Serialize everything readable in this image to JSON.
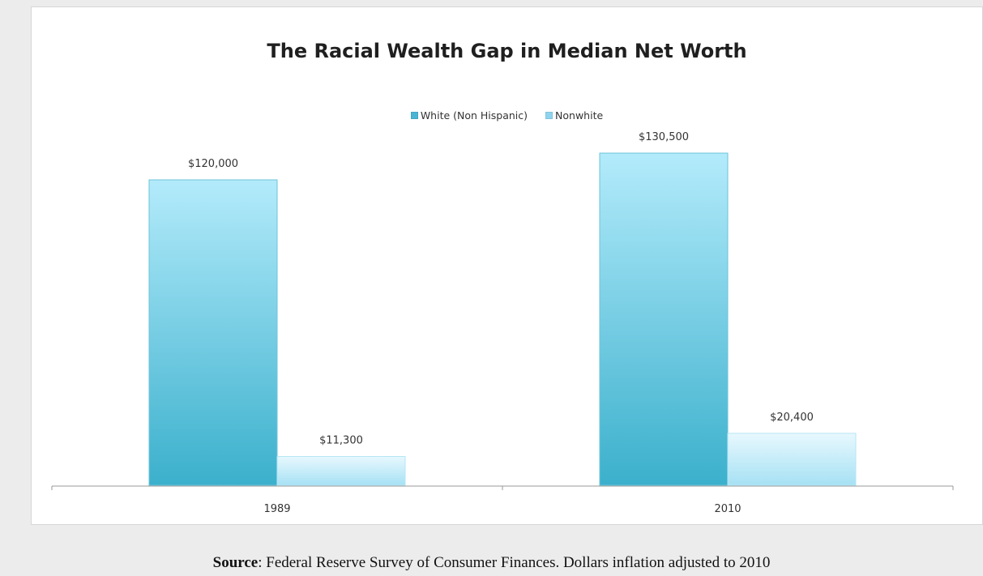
{
  "chart_data": {
    "type": "bar",
    "title": "The Racial Wealth Gap in Median Net Worth",
    "categories": [
      "1989",
      "2010"
    ],
    "series": [
      {
        "name": "White (Non Hispanic)",
        "values": [
          120000,
          130500
        ],
        "data_labels": [
          "$120,000",
          "$130,500"
        ],
        "color_top": "#b3ebfb",
        "color_bottom": "#3bb0cc",
        "legend_color": "#4ab4d4"
      },
      {
        "name": "Nonwhite",
        "values": [
          11300,
          20400
        ],
        "data_labels": [
          "$11,300",
          "$20,400"
        ],
        "color_top": "#e8f8fe",
        "color_bottom": "#a6e1f4",
        "legend_color": "#8fd4ee"
      }
    ],
    "ylim": [
      0,
      140000
    ],
    "grid": false,
    "legend_position": "top"
  },
  "source": {
    "label": "Source",
    "text": ": Federal Reserve Survey of Consumer Finances. Dollars inflation adjusted to 2010"
  }
}
